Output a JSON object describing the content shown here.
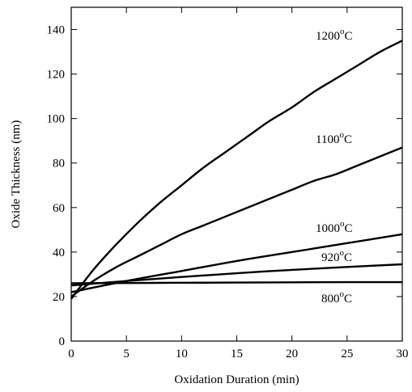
{
  "chart_data": {
    "type": "line",
    "title": "",
    "xlabel": "Oxidation Duration (min)",
    "ylabel": "Oxide Thickness (nm)",
    "xlim": [
      0,
      30
    ],
    "ylim": [
      0,
      150
    ],
    "xticks": [
      "0",
      "5",
      "10",
      "15",
      "20",
      "25",
      "30"
    ],
    "yticks": [
      "0",
      "20",
      "40",
      "60",
      "80",
      "100",
      "120",
      "140"
    ],
    "grid": false,
    "legend": "none",
    "series": [
      {
        "name": "1200",
        "unit": "C",
        "sup": "o",
        "x": [
          0,
          2,
          4,
          6,
          8,
          10,
          12,
          14,
          16,
          18,
          20,
          22,
          24,
          26,
          28,
          30
        ],
        "y": [
          19,
          32,
          43,
          53,
          62,
          70,
          78,
          85,
          92,
          99,
          105,
          112,
          118,
          124,
          130,
          135
        ]
      },
      {
        "name": "1100",
        "unit": "C",
        "sup": "o",
        "x": [
          0,
          2,
          4,
          6,
          8,
          10,
          12,
          14,
          16,
          18,
          20,
          22,
          24,
          26,
          28,
          30
        ],
        "y": [
          20,
          27,
          33,
          38,
          43,
          48,
          52,
          56,
          60,
          64,
          68,
          72,
          75,
          79,
          83,
          87
        ]
      },
      {
        "name": "1000",
        "unit": "C",
        "sup": "o",
        "x": [
          0,
          5,
          10,
          15,
          20,
          25,
          30
        ],
        "y": [
          22,
          27,
          31.5,
          36,
          40,
          44,
          48
        ]
      },
      {
        "name": "920",
        "unit": "C",
        "sup": "o",
        "x": [
          0,
          5,
          10,
          15,
          20,
          25,
          30
        ],
        "y": [
          25,
          27,
          28.8,
          30.5,
          32,
          33.3,
          34.5
        ]
      },
      {
        "name": "800",
        "unit": "C",
        "sup": "o",
        "x": [
          0,
          5,
          10,
          15,
          20,
          25,
          30
        ],
        "y": [
          26,
          26.1,
          26.2,
          26.3,
          26.4,
          26.5,
          26.5
        ]
      }
    ]
  }
}
